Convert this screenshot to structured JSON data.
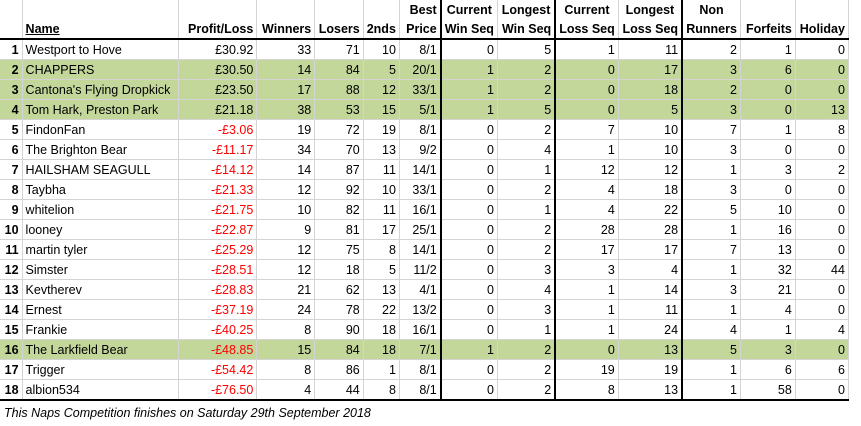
{
  "headers": {
    "name": "Name",
    "profit_loss": "Profit/Loss",
    "winners": "Winners",
    "losers": "Losers",
    "seconds": "2nds",
    "best_price_1": "Best",
    "best_price_2": "Price",
    "cur_win_1": "Current",
    "cur_win_2": "Win Seq",
    "long_win_1": "Longest",
    "long_win_2": "Win Seq",
    "cur_loss_1": "Current",
    "cur_loss_2": "Loss Seq",
    "long_loss_1": "Longest",
    "long_loss_2": "Loss Seq",
    "non_runners_1": "Non",
    "non_runners_2": "Runners",
    "forfeits": "Forfeits",
    "holiday": "Holiday"
  },
  "rows": [
    {
      "rank": "1",
      "name": "Westport to Hove",
      "pl": "£30.92",
      "w": "33",
      "l": "71",
      "s": "10",
      "bp": "8/1",
      "cw": "0",
      "lw": "5",
      "cl": "1",
      "ll": "11",
      "nr": "2",
      "f": "1",
      "h": "0",
      "hl": false,
      "neg": false
    },
    {
      "rank": "2",
      "name": "CHAPPERS",
      "pl": "£30.50",
      "w": "14",
      "l": "84",
      "s": "5",
      "bp": "20/1",
      "cw": "1",
      "lw": "2",
      "cl": "0",
      "ll": "17",
      "nr": "3",
      "f": "6",
      "h": "0",
      "hl": true,
      "neg": false
    },
    {
      "rank": "3",
      "name": "Cantona's Flying Dropkick",
      "pl": "£23.50",
      "w": "17",
      "l": "88",
      "s": "12",
      "bp": "33/1",
      "cw": "1",
      "lw": "2",
      "cl": "0",
      "ll": "18",
      "nr": "2",
      "f": "0",
      "h": "0",
      "hl": true,
      "neg": false
    },
    {
      "rank": "4",
      "name": "Tom Hark, Preston Park",
      "pl": "£21.18",
      "w": "38",
      "l": "53",
      "s": "15",
      "bp": "5/1",
      "cw": "1",
      "lw": "5",
      "cl": "0",
      "ll": "5",
      "nr": "3",
      "f": "0",
      "h": "13",
      "hl": true,
      "neg": false
    },
    {
      "rank": "5",
      "name": "FindonFan",
      "pl": "-£3.06",
      "w": "19",
      "l": "72",
      "s": "19",
      "bp": "8/1",
      "cw": "0",
      "lw": "2",
      "cl": "7",
      "ll": "10",
      "nr": "7",
      "f": "1",
      "h": "8",
      "hl": false,
      "neg": true
    },
    {
      "rank": "6",
      "name": "The Brighton Bear",
      "pl": "-£11.17",
      "w": "34",
      "l": "70",
      "s": "13",
      "bp": "9/2",
      "cw": "0",
      "lw": "4",
      "cl": "1",
      "ll": "10",
      "nr": "3",
      "f": "0",
      "h": "0",
      "hl": false,
      "neg": true
    },
    {
      "rank": "7",
      "name": "HAILSHAM SEAGULL",
      "pl": "-£14.12",
      "w": "14",
      "l": "87",
      "s": "11",
      "bp": "14/1",
      "cw": "0",
      "lw": "1",
      "cl": "12",
      "ll": "12",
      "nr": "1",
      "f": "3",
      "h": "2",
      "hl": false,
      "neg": true
    },
    {
      "rank": "8",
      "name": "Taybha",
      "pl": "-£21.33",
      "w": "12",
      "l": "92",
      "s": "10",
      "bp": "33/1",
      "cw": "0",
      "lw": "2",
      "cl": "4",
      "ll": "18",
      "nr": "3",
      "f": "0",
      "h": "0",
      "hl": false,
      "neg": true
    },
    {
      "rank": "9",
      "name": "whitelion",
      "pl": "-£21.75",
      "w": "10",
      "l": "82",
      "s": "11",
      "bp": "16/1",
      "cw": "0",
      "lw": "1",
      "cl": "4",
      "ll": "22",
      "nr": "5",
      "f": "10",
      "h": "0",
      "hl": false,
      "neg": true
    },
    {
      "rank": "10",
      "name": "looney",
      "pl": "-£22.87",
      "w": "9",
      "l": "81",
      "s": "17",
      "bp": "25/1",
      "cw": "0",
      "lw": "2",
      "cl": "28",
      "ll": "28",
      "nr": "1",
      "f": "16",
      "h": "0",
      "hl": false,
      "neg": true
    },
    {
      "rank": "11",
      "name": "martin tyler",
      "pl": "-£25.29",
      "w": "12",
      "l": "75",
      "s": "8",
      "bp": "14/1",
      "cw": "0",
      "lw": "2",
      "cl": "17",
      "ll": "17",
      "nr": "7",
      "f": "13",
      "h": "0",
      "hl": false,
      "neg": true
    },
    {
      "rank": "12",
      "name": "Simster",
      "pl": "-£28.51",
      "w": "12",
      "l": "18",
      "s": "5",
      "bp": "11/2",
      "cw": "0",
      "lw": "3",
      "cl": "3",
      "ll": "4",
      "nr": "1",
      "f": "32",
      "h": "44",
      "hl": false,
      "neg": true
    },
    {
      "rank": "13",
      "name": "Kevtherev",
      "pl": "-£28.83",
      "w": "21",
      "l": "62",
      "s": "13",
      "bp": "4/1",
      "cw": "0",
      "lw": "4",
      "cl": "1",
      "ll": "14",
      "nr": "3",
      "f": "21",
      "h": "0",
      "hl": false,
      "neg": true
    },
    {
      "rank": "14",
      "name": "Ernest",
      "pl": "-£37.19",
      "w": "24",
      "l": "78",
      "s": "22",
      "bp": "13/2",
      "cw": "0",
      "lw": "3",
      "cl": "1",
      "ll": "11",
      "nr": "1",
      "f": "4",
      "h": "0",
      "hl": false,
      "neg": true
    },
    {
      "rank": "15",
      "name": "Frankie",
      "pl": "-£40.25",
      "w": "8",
      "l": "90",
      "s": "18",
      "bp": "16/1",
      "cw": "0",
      "lw": "1",
      "cl": "1",
      "ll": "24",
      "nr": "4",
      "f": "1",
      "h": "4",
      "hl": false,
      "neg": true
    },
    {
      "rank": "16",
      "name": "The Larkfield Bear",
      "pl": "-£48.85",
      "w": "15",
      "l": "84",
      "s": "18",
      "bp": "7/1",
      "cw": "1",
      "lw": "2",
      "cl": "0",
      "ll": "13",
      "nr": "5",
      "f": "3",
      "h": "0",
      "hl": true,
      "neg": true
    },
    {
      "rank": "17",
      "name": "Trigger",
      "pl": "-£54.42",
      "w": "8",
      "l": "86",
      "s": "1",
      "bp": "8/1",
      "cw": "0",
      "lw": "2",
      "cl": "19",
      "ll": "19",
      "nr": "1",
      "f": "6",
      "h": "6",
      "hl": false,
      "neg": true
    },
    {
      "rank": "18",
      "name": "albion534",
      "pl": "-£76.50",
      "w": "4",
      "l": "44",
      "s": "8",
      "bp": "8/1",
      "cw": "0",
      "lw": "2",
      "cl": "8",
      "ll": "13",
      "nr": "1",
      "f": "58",
      "h": "0",
      "hl": false,
      "neg": true
    }
  ],
  "footer": "This Naps Competition finishes on Saturday 29th September 2018",
  "colors": {
    "highlight": "#c4d79b",
    "negative": "#ff0000"
  }
}
